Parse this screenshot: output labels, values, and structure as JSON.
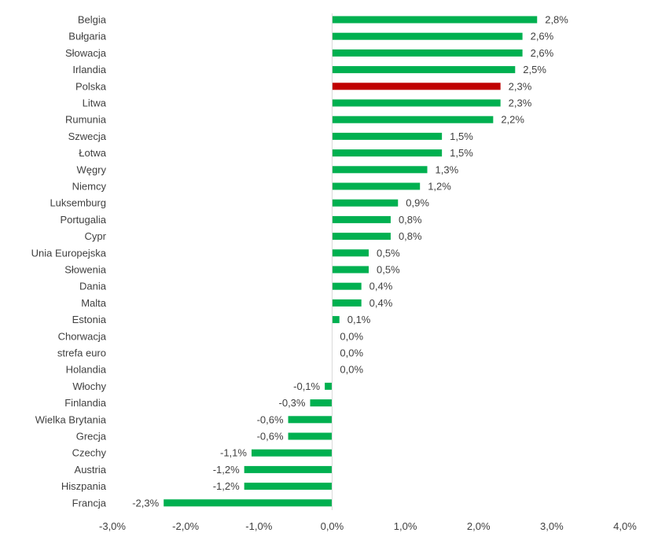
{
  "chart_data": {
    "type": "bar",
    "orientation": "horizontal",
    "categories": [
      "Belgia",
      "Bułgaria",
      "Słowacja",
      "Irlandia",
      "Polska",
      "Litwa",
      "Rumunia",
      "Szwecja",
      "Łotwa",
      "Węgry",
      "Niemcy",
      "Luksemburg",
      "Portugalia",
      "Cypr",
      "Unia Europejska",
      "Słowenia",
      "Dania",
      "Malta",
      "Estonia",
      "Chorwacja",
      "strefa euro",
      "Holandia",
      "Włochy",
      "Finlandia",
      "Wielka Brytania",
      "Grecja",
      "Czechy",
      "Austria",
      "Hiszpania",
      "Francja"
    ],
    "values": [
      2.8,
      2.6,
      2.6,
      2.5,
      2.3,
      2.3,
      2.2,
      1.5,
      1.5,
      1.3,
      1.2,
      0.9,
      0.8,
      0.8,
      0.5,
      0.5,
      0.4,
      0.4,
      0.1,
      0.0,
      0.0,
      0.0,
      -0.1,
      -0.3,
      -0.6,
      -0.6,
      -1.1,
      -1.2,
      -1.2,
      -2.3
    ],
    "data_labels": [
      "2,8%",
      "2,6%",
      "2,6%",
      "2,5%",
      "2,3%",
      "2,3%",
      "2,2%",
      "1,5%",
      "1,5%",
      "1,3%",
      "1,2%",
      "0,9%",
      "0,8%",
      "0,8%",
      "0,5%",
      "0,5%",
      "0,4%",
      "0,4%",
      "0,1%",
      "0,0%",
      "0,0%",
      "0,0%",
      "-0,1%",
      "-0,3%",
      "-0,6%",
      "-0,6%",
      "-1,1%",
      "-1,2%",
      "-1,2%",
      "-2,3%"
    ],
    "highlight_category": "Polska",
    "xlim": [
      -3.0,
      4.0
    ],
    "xticks": [
      -3.0,
      -2.0,
      -1.0,
      0.0,
      1.0,
      2.0,
      3.0,
      4.0
    ],
    "xtick_labels": [
      "-3,0%",
      "-2,0%",
      "-1,0%",
      "0,0%",
      "1,0%",
      "2,0%",
      "3,0%",
      "4,0%"
    ],
    "title": "",
    "xlabel": "",
    "ylabel": "",
    "grid": false,
    "legend": "none",
    "colors": {
      "bar": "#00b050",
      "highlight": "#c00000",
      "axis": "#d9d9d9",
      "text": "#404040"
    }
  }
}
